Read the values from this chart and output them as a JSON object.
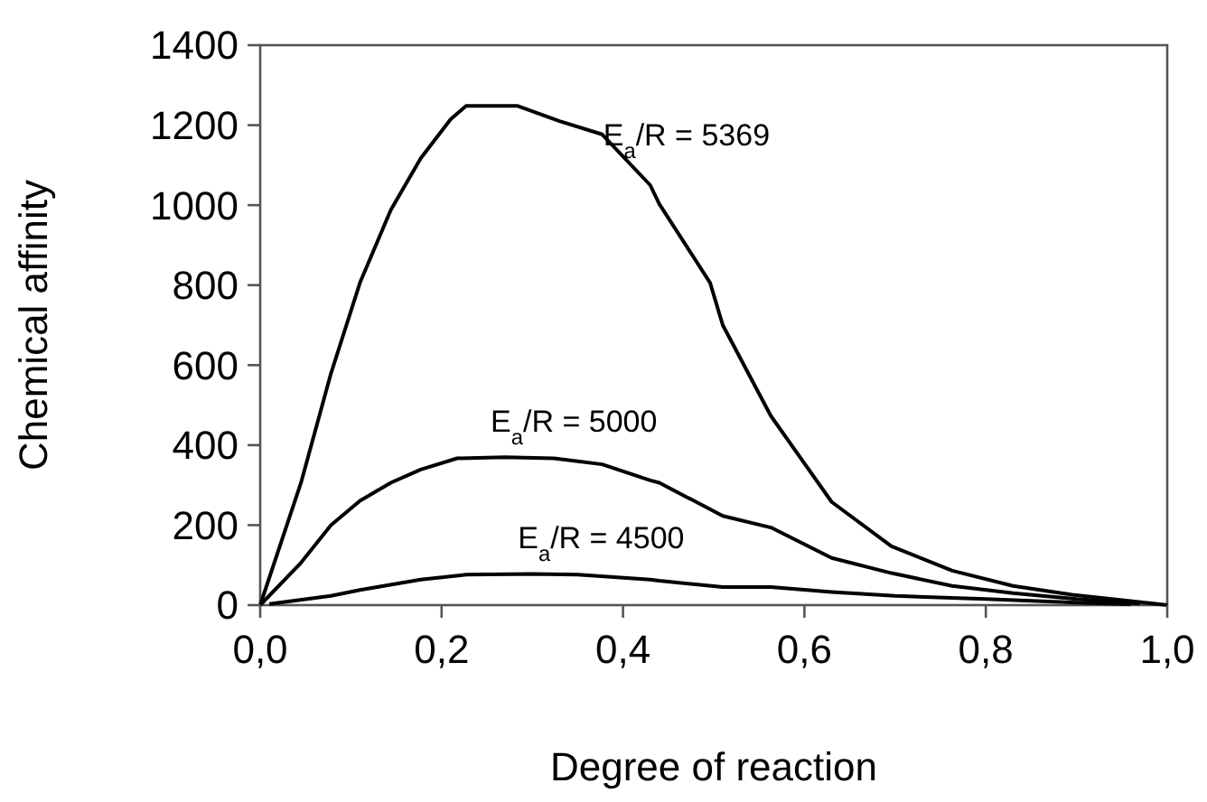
{
  "chart_data": {
    "type": "line",
    "xlabel": "Degree of reaction",
    "ylabel": "Chemical affinity",
    "xlim": [
      0,
      1
    ],
    "ylim": [
      0,
      1400
    ],
    "xticks": [
      {
        "value": 0,
        "label": "0,0"
      },
      {
        "value": 0.2,
        "label": "0,2"
      },
      {
        "value": 0.4,
        "label": "0,4"
      },
      {
        "value": 0.6,
        "label": "0,6"
      },
      {
        "value": 0.8,
        "label": "0,8"
      },
      {
        "value": 1,
        "label": "1,0"
      }
    ],
    "yticks": [
      0,
      200,
      400,
      600,
      800,
      1000,
      1200,
      1400
    ],
    "grid": false,
    "marker": "none",
    "line_style": "solid",
    "series": [
      {
        "name": "E$_{a}$/R = 5369",
        "color": "#000000",
        "x": [
          0,
          0.045,
          0.078,
          0.11,
          0.144,
          0.177,
          0.21,
          0.227,
          0.284,
          0.33,
          0.377,
          0.43,
          0.44,
          0.496,
          0.51,
          0.563,
          0.63,
          0.696,
          0.763,
          0.83,
          0.895,
          1
        ],
        "values": [
          0,
          306,
          579,
          806,
          988,
          1117,
          1215,
          1248,
          1248,
          1210,
          1177,
          1050,
          1003,
          806,
          700,
          473,
          258,
          147,
          86,
          48,
          26,
          0
        ]
      },
      {
        "name": "E$_{a}$/R = 5000",
        "color": "#000000",
        "x": [
          0,
          0.045,
          0.078,
          0.11,
          0.144,
          0.177,
          0.217,
          0.27,
          0.324,
          0.377,
          0.43,
          0.44,
          0.51,
          0.563,
          0.63,
          0.696,
          0.763,
          0.83,
          0.9,
          0.97
        ],
        "values": [
          0,
          106,
          200,
          261,
          306,
          339,
          367,
          370,
          367,
          352,
          312,
          306,
          223,
          194,
          118,
          80,
          48,
          30,
          15,
          4
        ]
      },
      {
        "name": "E$_{a}$/R = 4500",
        "color": "#000000",
        "x": [
          0.01,
          0.078,
          0.11,
          0.177,
          0.227,
          0.3,
          0.35,
          0.43,
          0.44,
          0.51,
          0.563,
          0.63,
          0.7,
          0.8,
          0.9,
          0.96
        ],
        "values": [
          3,
          23,
          38,
          64,
          76,
          78,
          76,
          64,
          61,
          45,
          45,
          33,
          23,
          15,
          6,
          2
        ]
      }
    ]
  }
}
